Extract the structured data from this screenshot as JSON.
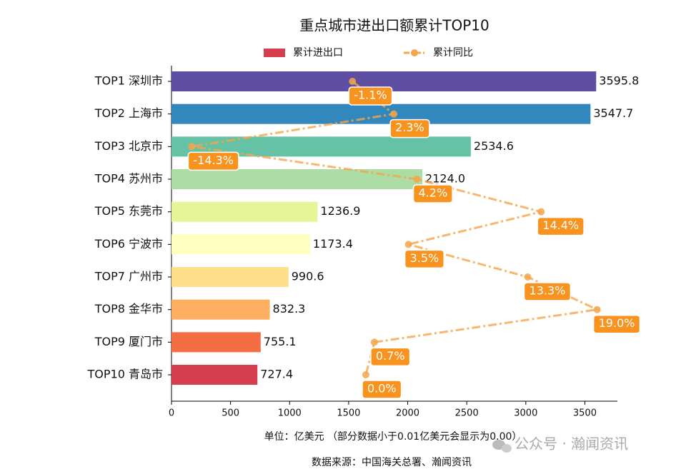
{
  "chart_data": {
    "type": "bar",
    "orientation": "horizontal",
    "title": "重点城市进出口额累计TOP10",
    "categories": [
      "TOP1 深圳市",
      "TOP2 上海市",
      "TOP3 北京市",
      "TOP4 苏州市",
      "TOP5 东莞市",
      "TOP6 宁波市",
      "TOP7 广州市",
      "TOP8 金华市",
      "TOP9 厦门市",
      "TOP10 青岛市"
    ],
    "series": [
      {
        "name": "累计进出口",
        "type": "bar",
        "color": "#d53e4f",
        "colors": [
          "#5e4fa2",
          "#3288bd",
          "#66c2a5",
          "#abdda4",
          "#e6f598",
          "#ffffbf",
          "#fee08b",
          "#fdae61",
          "#f46d43",
          "#d53e4f"
        ],
        "values": [
          3595.8,
          3547.7,
          2534.6,
          2124.0,
          1236.9,
          1173.4,
          990.6,
          832.3,
          755.1,
          727.4
        ],
        "value_labels": [
          "3595.8",
          "3547.7",
          "2534.6",
          "2124.0",
          "1236.9",
          "1173.4",
          "990.6",
          "832.3",
          "755.1",
          "727.4"
        ]
      },
      {
        "name": "累计同比",
        "type": "line",
        "axis": "x2",
        "color": "#f5a54a",
        "label_color": "#f7931e",
        "values": [
          -1.1,
          2.3,
          -14.3,
          4.2,
          14.4,
          3.5,
          13.3,
          19.0,
          0.7,
          0.0
        ],
        "value_labels": [
          "-1.1%",
          "2.3%",
          "-14.3%",
          "4.2%",
          "14.4%",
          "3.5%",
          "13.3%",
          "19.0%",
          "0.7%",
          "0.0%"
        ]
      }
    ],
    "xlim": [
      0,
      3775.6
    ],
    "xticks": [
      0,
      500,
      1000,
      1500,
      2000,
      2500,
      3000,
      3500
    ],
    "x2lim": [
      -15.965,
      20.665
    ],
    "xlabel": "单位：亿美元  （部分数据小于0.01亿美元会显示为0.00）",
    "source": "数据来源：中国海关总署、瀚闻资讯",
    "watermark": "公众号 · 瀚闻资讯",
    "legend": "top"
  }
}
